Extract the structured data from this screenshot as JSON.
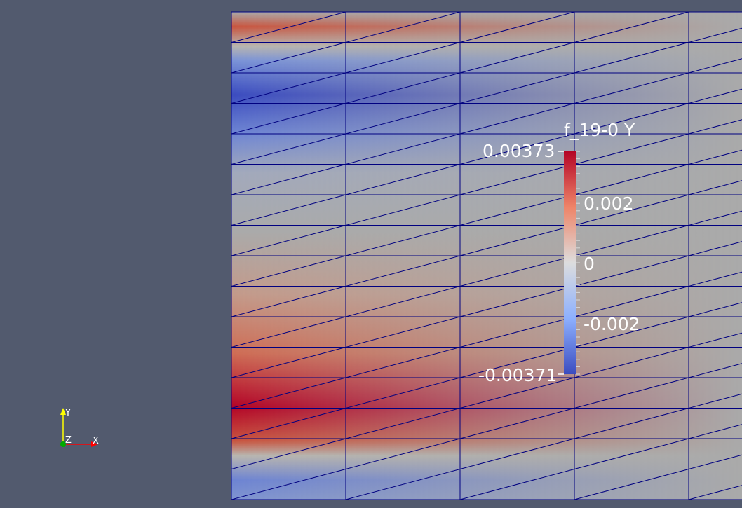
{
  "render_view": {
    "colorbar": {
      "title": "f_19-0 Y",
      "max_label": "0.00373",
      "min_label": "-0.00371",
      "ticks": [
        "0.002",
        "0",
        "-0.002"
      ],
      "colormap": [
        "#3b4cc0",
        "#8db0fe",
        "#dddddd",
        "#f4987a",
        "#b40426"
      ]
    },
    "orientation_axes": {
      "y_label": "Y",
      "z_label": "Z",
      "x_label": "X",
      "y_color": "#ffff00",
      "x_color": "#ff0000",
      "z_color": "#00aa00"
    },
    "mesh": {
      "surface_color": "#aaaaaa",
      "edge_color": "#000080",
      "background_color": "#525a6e"
    }
  }
}
